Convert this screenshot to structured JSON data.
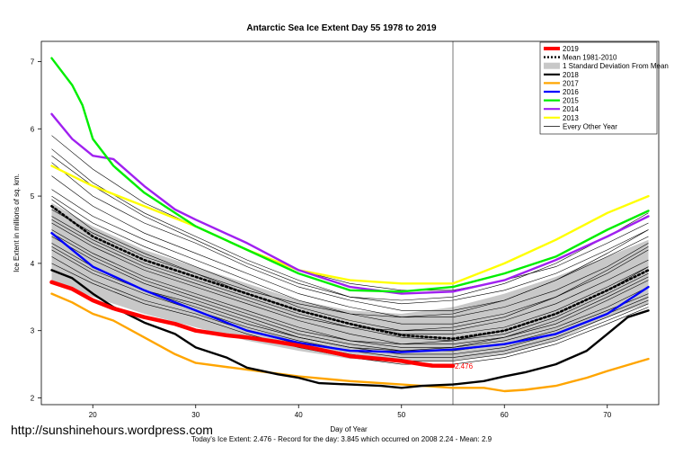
{
  "chart_data": {
    "type": "line",
    "title": "Antarctic Sea Ice Extent Day 55 1978 to 2019",
    "xlabel": "Day of Year",
    "ylabel": "Ice Extent in millions of sq. km.",
    "xlim": [
      15,
      75
    ],
    "ylim": [
      1.9,
      7.3
    ],
    "x_ticks": [
      20,
      30,
      40,
      50,
      60,
      70
    ],
    "y_ticks": [
      2,
      3,
      4,
      5,
      6,
      7
    ],
    "marker_day": 55,
    "current_value_label": "2.476",
    "legend_position": "top-right",
    "legend": [
      {
        "label": "2019",
        "color": "#ff0000",
        "style": "thick"
      },
      {
        "label": "Mean 1981-2010",
        "color": "#000000",
        "style": "dotted"
      },
      {
        "label": "1 Standard Deviation From Mean",
        "color": "#c8c8c8",
        "style": "band"
      },
      {
        "label": "2018",
        "color": "#000000",
        "style": "solid"
      },
      {
        "label": "2017",
        "color": "#ffa500",
        "style": "solid"
      },
      {
        "label": "2016",
        "color": "#0000ff",
        "style": "solid"
      },
      {
        "label": "2015",
        "color": "#00ee00",
        "style": "solid"
      },
      {
        "label": "2014",
        "color": "#a020f0",
        "style": "solid"
      },
      {
        "label": "2013",
        "color": "#ffff00",
        "style": "solid"
      },
      {
        "label": "Every Other Year",
        "color": "#000000",
        "style": "thin"
      }
    ],
    "std_band": {
      "x": [
        16,
        20,
        25,
        30,
        35,
        40,
        45,
        50,
        55,
        60,
        65,
        70,
        74
      ],
      "upper": [
        4.9,
        4.55,
        4.2,
        3.95,
        3.7,
        3.45,
        3.3,
        3.25,
        3.35,
        3.55,
        3.8,
        4.1,
        4.35
      ],
      "lower": [
        3.75,
        3.5,
        3.25,
        3.05,
        2.85,
        2.7,
        2.58,
        2.55,
        2.55,
        2.65,
        2.85,
        3.2,
        3.4
      ]
    },
    "background_years": [
      {
        "y": [
          5.9,
          5.4,
          4.9,
          4.55,
          4.2,
          3.9,
          3.7,
          3.6,
          3.6,
          3.75,
          3.95,
          4.3,
          4.6
        ]
      },
      {
        "y": [
          5.7,
          5.2,
          4.75,
          4.4,
          4.05,
          3.75,
          3.5,
          3.4,
          3.45,
          3.6,
          3.85,
          4.2,
          4.5
        ]
      },
      {
        "y": [
          5.5,
          5.0,
          4.6,
          4.3,
          3.95,
          3.65,
          3.45,
          3.3,
          3.3,
          3.45,
          3.75,
          4.1,
          4.4
        ]
      },
      {
        "y": [
          5.3,
          4.85,
          4.45,
          4.15,
          3.85,
          3.55,
          3.35,
          3.2,
          3.2,
          3.35,
          3.6,
          3.95,
          4.3
        ]
      },
      {
        "y": [
          5.1,
          4.7,
          4.35,
          4.05,
          3.75,
          3.45,
          3.25,
          3.1,
          3.1,
          3.25,
          3.5,
          3.85,
          4.2
        ]
      },
      {
        "y": [
          5.0,
          4.6,
          4.25,
          3.95,
          3.65,
          3.35,
          3.15,
          3.0,
          3.0,
          3.15,
          3.4,
          3.75,
          4.05
        ]
      },
      {
        "y": [
          4.8,
          4.45,
          4.1,
          3.85,
          3.55,
          3.3,
          3.1,
          2.95,
          2.95,
          3.05,
          3.3,
          3.65,
          3.95
        ]
      },
      {
        "y": [
          4.7,
          4.35,
          4.0,
          3.75,
          3.5,
          3.25,
          3.05,
          2.9,
          2.85,
          2.95,
          3.2,
          3.55,
          3.85
        ]
      },
      {
        "y": [
          4.6,
          4.25,
          3.9,
          3.65,
          3.4,
          3.15,
          2.95,
          2.8,
          2.8,
          2.9,
          3.1,
          3.45,
          3.75
        ]
      },
      {
        "y": [
          4.5,
          4.15,
          3.8,
          3.55,
          3.3,
          3.05,
          2.85,
          2.75,
          2.75,
          2.85,
          3.05,
          3.35,
          3.65
        ]
      },
      {
        "y": [
          4.4,
          4.05,
          3.7,
          3.45,
          3.2,
          2.95,
          2.8,
          2.7,
          2.7,
          2.8,
          3.0,
          3.3,
          3.55
        ]
      },
      {
        "y": [
          4.3,
          3.95,
          3.6,
          3.4,
          3.15,
          2.9,
          2.75,
          2.65,
          2.65,
          2.75,
          2.95,
          3.25,
          3.5
        ]
      },
      {
        "y": [
          4.2,
          3.85,
          3.55,
          3.3,
          3.05,
          2.85,
          2.7,
          2.6,
          2.6,
          2.7,
          2.9,
          3.2,
          3.45
        ]
      },
      {
        "y": [
          4.1,
          3.75,
          3.45,
          3.25,
          3.0,
          2.8,
          2.65,
          2.55,
          2.55,
          2.65,
          2.85,
          3.15,
          3.4
        ]
      },
      {
        "y": [
          4.0,
          3.7,
          3.4,
          3.2,
          2.95,
          2.75,
          2.6,
          2.5,
          2.5,
          2.6,
          2.8,
          3.1,
          3.35
        ]
      },
      {
        "y": [
          5.6,
          5.15,
          4.7,
          4.35,
          4.0,
          3.7,
          3.5,
          3.45,
          3.5,
          3.7,
          4.0,
          4.4,
          4.75
        ]
      },
      {
        "y": [
          4.95,
          4.5,
          4.15,
          3.85,
          3.6,
          3.4,
          3.25,
          3.2,
          3.25,
          3.45,
          3.75,
          4.15,
          4.5
        ]
      },
      {
        "y": [
          4.65,
          4.3,
          3.95,
          3.7,
          3.45,
          3.2,
          3.05,
          3.0,
          3.05,
          3.2,
          3.5,
          3.9,
          4.25
        ]
      },
      {
        "y": [
          4.25,
          3.9,
          3.6,
          3.35,
          3.1,
          2.9,
          2.75,
          2.7,
          2.75,
          2.9,
          3.15,
          3.5,
          3.8
        ]
      },
      {
        "y": [
          4.45,
          4.1,
          3.75,
          3.5,
          3.25,
          3.0,
          2.85,
          2.8,
          2.85,
          3.0,
          3.25,
          3.6,
          3.95
        ]
      }
    ],
    "series": [
      {
        "name": "Mean 1981-2010",
        "color": "#000000",
        "style": "dotted",
        "x": [
          16,
          20,
          25,
          30,
          35,
          40,
          45,
          50,
          55,
          60,
          65,
          70,
          74
        ],
        "y": [
          4.85,
          4.4,
          4.05,
          3.8,
          3.55,
          3.3,
          3.1,
          2.93,
          2.88,
          3.0,
          3.25,
          3.6,
          3.9
        ]
      },
      {
        "name": "2013",
        "color": "#ffff00",
        "style": "solid",
        "x": [
          16,
          20,
          25,
          30,
          35,
          40,
          45,
          50,
          55,
          60,
          65,
          70,
          74
        ],
        "y": [
          5.45,
          5.15,
          4.85,
          4.55,
          4.2,
          3.9,
          3.75,
          3.7,
          3.7,
          4.0,
          4.35,
          4.75,
          5.0
        ]
      },
      {
        "name": "2014",
        "color": "#a020f0",
        "style": "solid",
        "x": [
          16,
          18,
          20,
          22,
          25,
          28,
          30,
          35,
          40,
          45,
          50,
          55,
          60,
          65,
          70,
          74
        ],
        "y": [
          6.22,
          5.85,
          5.6,
          5.55,
          5.15,
          4.8,
          4.65,
          4.3,
          3.9,
          3.65,
          3.55,
          3.58,
          3.75,
          4.05,
          4.4,
          4.7
        ]
      },
      {
        "name": "2015",
        "color": "#00ee00",
        "style": "solid",
        "x": [
          16,
          18,
          19,
          20,
          22,
          25,
          28,
          30,
          35,
          40,
          45,
          50,
          55,
          60,
          65,
          70,
          74
        ],
        "y": [
          7.05,
          6.65,
          6.35,
          5.85,
          5.45,
          5.05,
          4.75,
          4.55,
          4.2,
          3.85,
          3.6,
          3.58,
          3.65,
          3.85,
          4.1,
          4.5,
          4.78
        ]
      },
      {
        "name": "2016",
        "color": "#0000ff",
        "style": "solid",
        "x": [
          16,
          20,
          25,
          30,
          35,
          40,
          45,
          50,
          55,
          60,
          65,
          70,
          74
        ],
        "y": [
          4.45,
          3.95,
          3.6,
          3.3,
          3.0,
          2.82,
          2.7,
          2.68,
          2.72,
          2.8,
          2.95,
          3.25,
          3.65
        ]
      },
      {
        "name": "2017",
        "color": "#ffa500",
        "style": "solid",
        "x": [
          16,
          18,
          20,
          22,
          25,
          28,
          30,
          35,
          40,
          45,
          50,
          55,
          58,
          60,
          62,
          65,
          68,
          70,
          74
        ],
        "y": [
          3.55,
          3.42,
          3.25,
          3.15,
          2.9,
          2.65,
          2.52,
          2.42,
          2.32,
          2.25,
          2.2,
          2.15,
          2.15,
          2.1,
          2.12,
          2.18,
          2.3,
          2.4,
          2.58
        ]
      },
      {
        "name": "2018",
        "color": "#000000",
        "style": "solid",
        "x": [
          16,
          18,
          20,
          22,
          25,
          28,
          30,
          33,
          35,
          38,
          40,
          42,
          45,
          48,
          50,
          52,
          55,
          58,
          60,
          62,
          65,
          68,
          70,
          72,
          74
        ],
        "y": [
          3.9,
          3.78,
          3.55,
          3.35,
          3.12,
          2.95,
          2.75,
          2.6,
          2.45,
          2.35,
          2.3,
          2.22,
          2.2,
          2.18,
          2.15,
          2.18,
          2.2,
          2.25,
          2.32,
          2.38,
          2.5,
          2.7,
          2.95,
          3.2,
          3.3
        ]
      },
      {
        "name": "2019",
        "color": "#ff0000",
        "style": "thick",
        "x": [
          16,
          18,
          20,
          22,
          25,
          28,
          30,
          33,
          35,
          38,
          40,
          42,
          45,
          48,
          50,
          52,
          53,
          55
        ],
        "y": [
          3.72,
          3.62,
          3.45,
          3.33,
          3.2,
          3.1,
          3.0,
          2.93,
          2.9,
          2.83,
          2.78,
          2.72,
          2.62,
          2.58,
          2.55,
          2.5,
          2.48,
          2.476
        ]
      }
    ]
  },
  "credit": "http://sunshinehours.wordpress.com",
  "footer": "Today's Ice Extent: 2.476  - Record for the day: 3.845 which occurred on 2008 2.24  - Mean: 2.9"
}
